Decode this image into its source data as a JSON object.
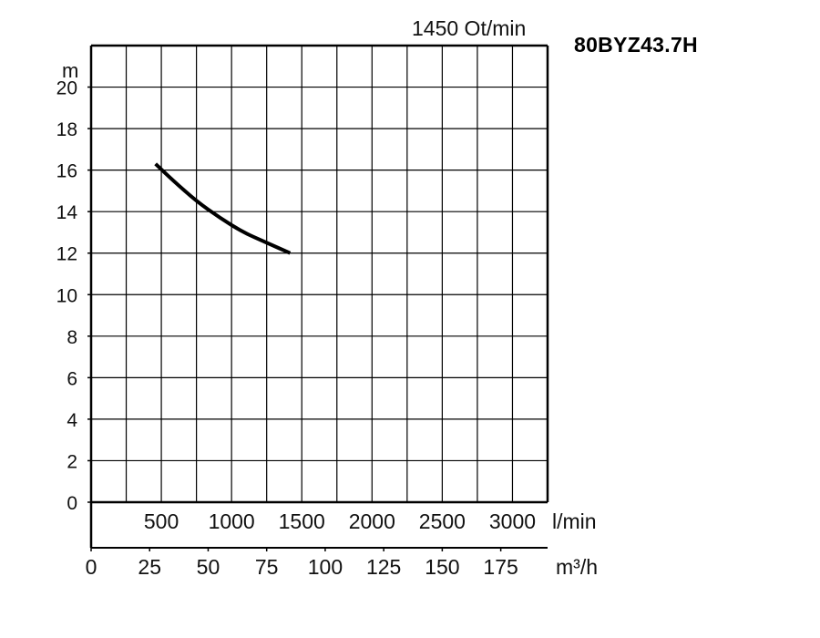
{
  "header": {
    "speed": "1450 Ot/min",
    "model": "80BYZ43.7H"
  },
  "chart_data": {
    "type": "line",
    "title": "",
    "ylabel": "m",
    "ylim": [
      0,
      22
    ],
    "yticks": [
      0,
      2,
      4,
      6,
      8,
      10,
      12,
      14,
      16,
      18,
      20
    ],
    "x_lmin": {
      "unit": "l/min",
      "ticks": [
        500,
        1000,
        1500,
        2000,
        2500,
        3000
      ]
    },
    "x_m3h": {
      "unit": "m³/h",
      "xlim": [
        0,
        195
      ],
      "ticks": [
        0,
        25,
        50,
        75,
        100,
        125,
        150,
        175
      ]
    },
    "grid": true,
    "series": [
      {
        "x_m3h": [
          27.5,
          35,
          45,
          55,
          65,
          75,
          85
        ],
        "y_m": [
          16.3,
          15.5,
          14.5,
          13.7,
          13.0,
          12.5,
          12.0
        ]
      }
    ]
  },
  "colors": {
    "line": "#000000",
    "grid": "#000000",
    "text": "#111111"
  }
}
